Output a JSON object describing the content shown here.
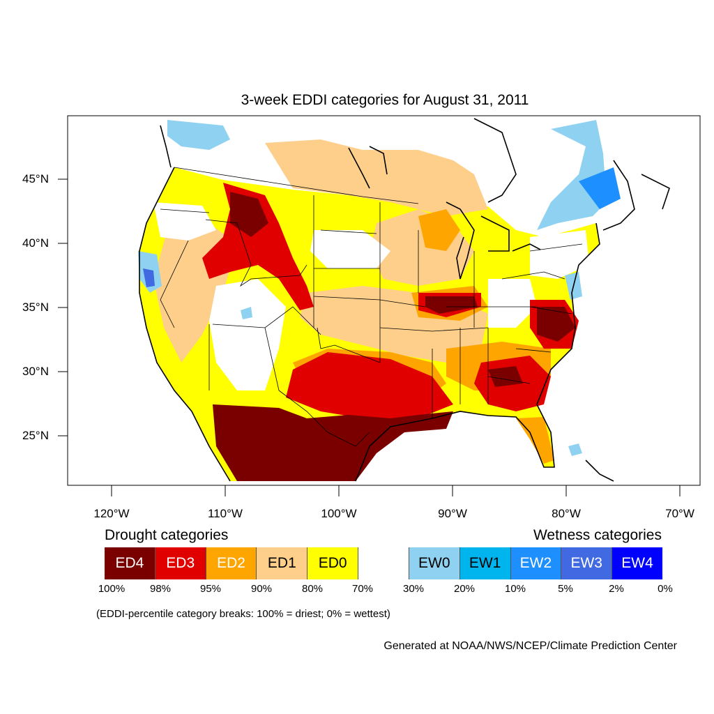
{
  "title": "3-week EDDI categories for August 31, 2011",
  "lat_labels": [
    "45°N",
    "40°N",
    "35°N",
    "30°N",
    "25°N"
  ],
  "lon_labels": [
    "120°W",
    "110°W",
    "100°W",
    "90°W",
    "80°W",
    "70°W"
  ],
  "drought_heading": "Drought categories",
  "wetness_heading": "Wetness categories",
  "legend": [
    {
      "label": "ED4",
      "color": "#7a0000",
      "text_color": "#ffffff"
    },
    {
      "label": "ED3",
      "color": "#e00000",
      "text_color": "#ffffff"
    },
    {
      "label": "ED2",
      "color": "#ffa500",
      "text_color": "#ffffff"
    },
    {
      "label": "ED1",
      "color": "#fdcf8a",
      "text_color": "#000000"
    },
    {
      "label": "ED0",
      "color": "#ffff00",
      "text_color": "#000000"
    },
    {
      "label": "",
      "color": "#ffffff",
      "text_color": "#000000"
    },
    {
      "label": "EW0",
      "color": "#8fd1f0",
      "text_color": "#000000"
    },
    {
      "label": "EW1",
      "color": "#00b4ee",
      "text_color": "#000000"
    },
    {
      "label": "EW2",
      "color": "#1e8fff",
      "text_color": "#ffffff"
    },
    {
      "label": "EW3",
      "color": "#4169e1",
      "text_color": "#ffffff"
    },
    {
      "label": "EW4",
      "color": "#0000ff",
      "text_color": "#ffffff"
    }
  ],
  "percent_labels": [
    "100%",
    "98%",
    "95%",
    "90%",
    "80%",
    "70%",
    "30%",
    "20%",
    "10%",
    "5%",
    "2%",
    "0%"
  ],
  "footnote": "(EDDI-percentile category breaks: 100% = driest; 0% = wettest)",
  "credit": "Generated at NOAA/NWS/NCEP/Climate Prediction Center"
}
